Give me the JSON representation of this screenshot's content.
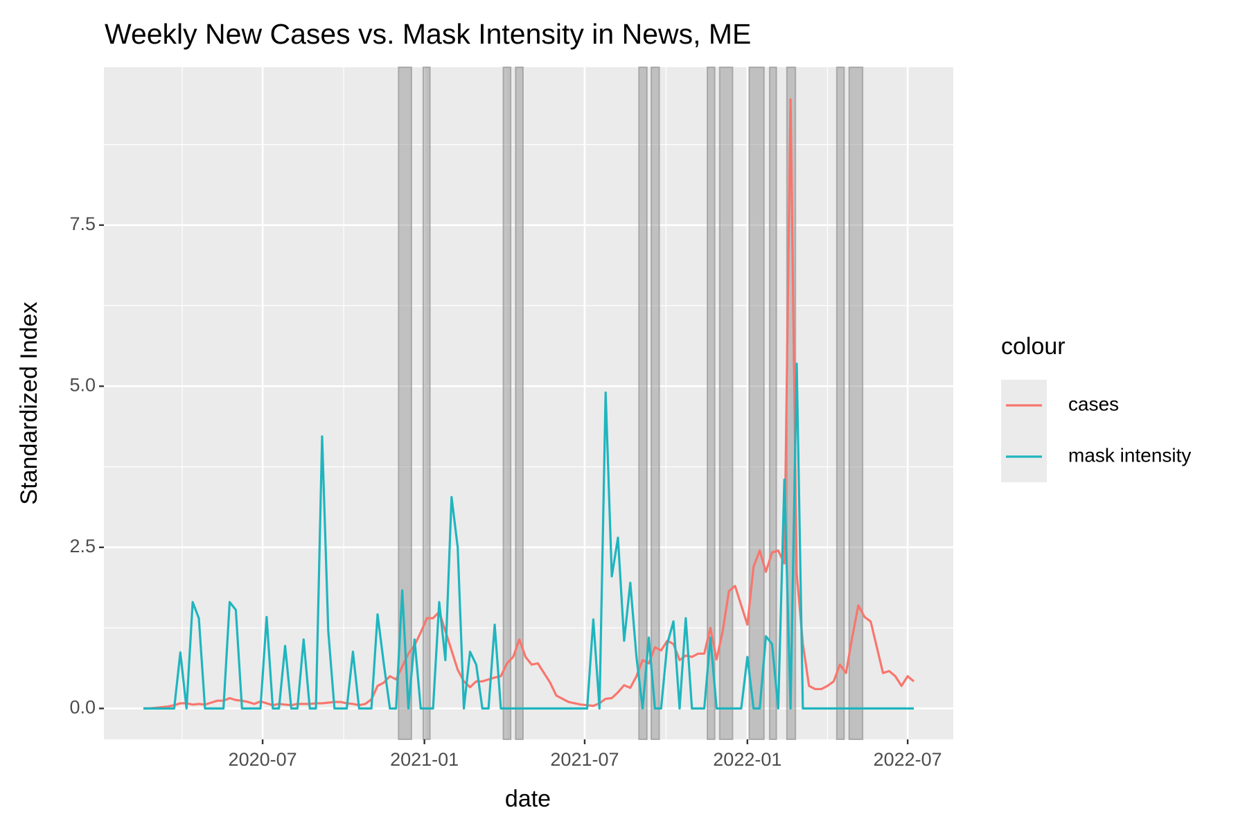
{
  "chart_data": {
    "type": "line",
    "title": "Weekly New Cases vs. Mask Intensity in News, ME",
    "xlabel": "date",
    "ylabel": "Standardized Index",
    "legend_title": "colour",
    "legend": "right",
    "grid": true,
    "xlim": [
      -6.4,
      131.4
    ],
    "ylim": [
      -0.48,
      9.95
    ],
    "xticks": [
      {
        "value": 19.35,
        "label": "2020-07"
      },
      {
        "value": 45.6,
        "label": "2021-01"
      },
      {
        "value": 71.6,
        "label": "2021-07"
      },
      {
        "value": 98.0,
        "label": "2022-01"
      },
      {
        "value": 124.0,
        "label": "2022-07"
      }
    ],
    "xminor": [
      6.3,
      32.5,
      58.7,
      84.8,
      111.0
    ],
    "yticks": [
      {
        "value": 0,
        "label": "0.0"
      },
      {
        "value": 2.5,
        "label": "2.5"
      },
      {
        "value": 5,
        "label": "5.0"
      },
      {
        "value": 7.5,
        "label": "7.5"
      }
    ],
    "yminor": [
      1.25,
      3.75,
      6.25,
      8.75
    ],
    "highlight_ranges": [
      [
        41.4,
        43.5
      ],
      [
        45.4,
        46.5
      ],
      [
        58.4,
        59.6
      ],
      [
        60.4,
        61.6
      ],
      [
        80.4,
        81.7
      ],
      [
        82.4,
        83.7
      ],
      [
        91.5,
        92.7
      ],
      [
        93.5,
        95.6
      ],
      [
        98.3,
        100.7
      ],
      [
        101.6,
        102.7
      ],
      [
        104.4,
        105.8
      ],
      [
        112.5,
        113.7
      ],
      [
        114.5,
        116.7
      ]
    ],
    "series": [
      {
        "name": "cases",
        "color": "#F8766D",
        "values": [
          0,
          0,
          0.01,
          0.02,
          0.03,
          0.05,
          0.08,
          0.08,
          0.06,
          0.07,
          0.06,
          0.09,
          0.12,
          0.12,
          0.16,
          0.13,
          0.12,
          0.1,
          0.07,
          0.11,
          0.08,
          0.05,
          0.07,
          0.06,
          0.05,
          0.07,
          0.07,
          0.07,
          0.08,
          0.08,
          0.09,
          0.1,
          0.1,
          0.08,
          0.07,
          0.05,
          0.07,
          0.14,
          0.35,
          0.4,
          0.5,
          0.45,
          0.65,
          0.85,
          0.98,
          1.18,
          1.4,
          1.4,
          1.5,
          1.2,
          0.9,
          0.6,
          0.42,
          0.33,
          0.42,
          0.42,
          0.45,
          0.48,
          0.5,
          0.7,
          0.8,
          1.07,
          0.8,
          0.68,
          0.7,
          0.55,
          0.4,
          0.2,
          0.15,
          0.1,
          0.08,
          0.06,
          0.05,
          0.04,
          0.08,
          0.15,
          0.16,
          0.25,
          0.36,
          0.32,
          0.5,
          0.75,
          0.7,
          0.95,
          0.9,
          1.05,
          1.0,
          0.75,
          0.82,
          0.8,
          0.85,
          0.85,
          1.25,
          0.76,
          1.2,
          1.82,
          1.9,
          1.6,
          1.3,
          2.2,
          2.45,
          2.12,
          2.42,
          2.45,
          2.25,
          9.45,
          2.1,
          1.0,
          0.35,
          0.3,
          0.3,
          0.35,
          0.42,
          0.68,
          0.55,
          1.1,
          1.6,
          1.42,
          1.35,
          0.95,
          0.55,
          0.58,
          0.5,
          0.35,
          0.5,
          0.42
        ]
      },
      {
        "name": "mask intensity",
        "color": "#1FB5BE",
        "values": [
          0,
          0,
          0,
          0,
          0,
          0,
          0.87,
          0,
          1.65,
          1.4,
          0,
          0,
          0,
          0,
          1.65,
          1.53,
          0,
          0,
          0,
          0,
          1.42,
          0,
          0,
          0.97,
          0,
          0,
          1.07,
          0,
          0,
          4.22,
          1.2,
          0,
          0,
          0,
          0.88,
          0,
          0,
          0,
          1.46,
          0.7,
          0,
          0,
          1.83,
          0,
          1.07,
          0,
          0,
          0,
          1.65,
          0.75,
          3.28,
          2.5,
          0,
          0.88,
          0.68,
          0,
          0,
          1.3,
          0,
          0,
          0,
          0,
          0,
          0,
          0,
          0,
          0,
          0,
          0,
          0,
          0,
          0,
          0,
          1.38,
          0,
          4.9,
          2.05,
          2.65,
          1.05,
          1.95,
          0.8,
          0,
          1.1,
          0,
          0,
          1.0,
          1.35,
          0,
          1.4,
          0,
          0,
          0,
          1.1,
          0,
          0,
          0,
          0,
          0,
          0.8,
          0,
          0,
          1.12,
          1.0,
          0,
          3.55,
          0,
          5.35,
          0,
          0,
          0,
          0,
          0,
          0,
          0,
          0,
          0,
          0,
          0,
          0,
          0,
          0,
          0,
          0,
          0,
          0,
          0
        ]
      }
    ]
  }
}
